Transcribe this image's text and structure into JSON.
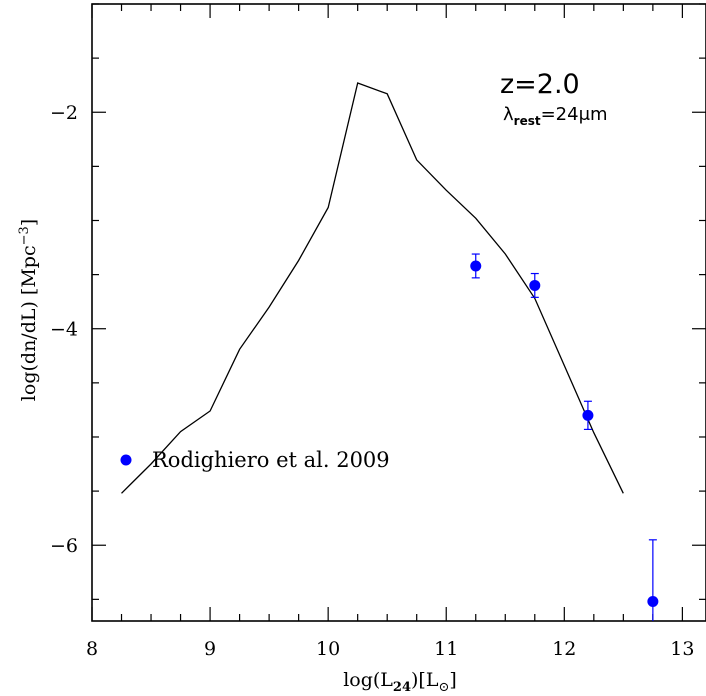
{
  "chart_data": {
    "type": "line",
    "xlabel": "log(L",
    "xlabel_sub": "24",
    "xlabel_suffix": ")[L",
    "xlabel_sub2": "⊙",
    "xlabel_end": "]",
    "ylabel": "log(dn/dL)  [Mpc",
    "ylabel_sup": "−3",
    "ylabel_end": "]",
    "xlim": [
      8,
      13.2
    ],
    "ylim": [
      -6.7,
      -1.0
    ],
    "x_ticks": [
      8,
      9,
      10,
      11,
      12,
      13
    ],
    "y_ticks": [
      -2,
      -4,
      -6
    ],
    "annotation_z": "z=2.0",
    "annotation_lambda": "λ",
    "annotation_lambda_sub": "rest",
    "annotation_lambda_val": "=24μm",
    "colors": {
      "points": "#0000ff",
      "line": "#000000"
    },
    "series": [
      {
        "type": "line",
        "x": [
          8.25,
          8.5,
          8.75,
          9.0,
          9.25,
          9.5,
          9.75,
          10.0,
          10.25,
          10.5,
          10.75,
          11.0,
          11.25,
          11.5,
          11.75,
          12.0,
          12.25,
          12.5
        ],
        "y": [
          -5.52,
          -5.25,
          -4.95,
          -4.76,
          -4.19,
          -3.8,
          -3.37,
          -2.88,
          -1.73,
          -1.83,
          -2.44,
          -2.72,
          -2.98,
          -3.31,
          -3.72,
          -4.34,
          -4.96,
          -5.52
        ]
      },
      {
        "name": "Rodighiero et al. 2009",
        "type": "scatter",
        "x": [
          11.25,
          11.75,
          12.2,
          12.75
        ],
        "y": [
          -3.42,
          -3.6,
          -4.8,
          -6.52
        ],
        "yerr_plus": [
          0.11,
          0.11,
          0.13,
          0.57
        ],
        "yerr_minus": [
          0.11,
          0.11,
          0.13,
          0.57
        ]
      }
    ],
    "legend": {
      "label": "Rodighiero et al. 2009",
      "position": "lower-left"
    }
  }
}
